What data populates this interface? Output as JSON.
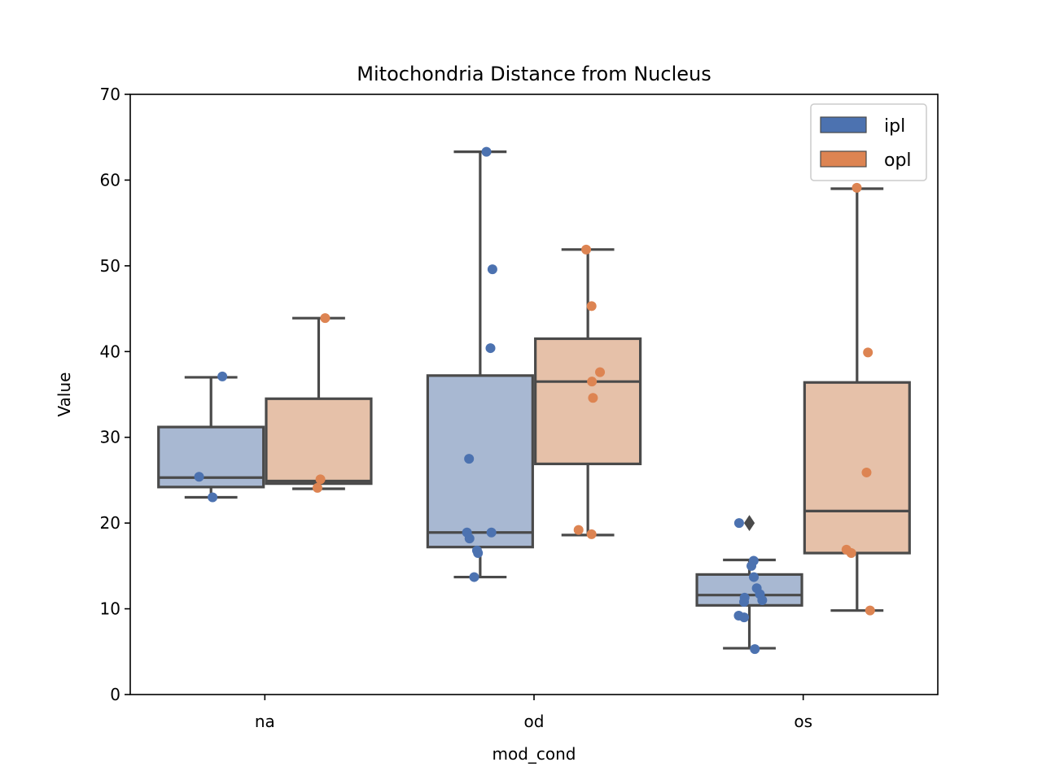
{
  "chart_data": {
    "type": "box",
    "title": "Mitochondria Distance from Nucleus",
    "xlabel": "mod_cond",
    "ylabel": "Value",
    "ylim": [
      0,
      70
    ],
    "yticks": [
      0,
      10,
      20,
      30,
      40,
      50,
      60,
      70
    ],
    "categories": [
      "na",
      "od",
      "os"
    ],
    "grid": false,
    "legend_position": "top-right",
    "series": [
      {
        "name": "ipl",
        "color": "#4c72b0",
        "box_fill": "#a8b8d2",
        "boxes": [
          {
            "category": "na",
            "q1": 24.2,
            "median": 25.3,
            "q3": 31.2,
            "whisker_low": 23.0,
            "whisker_high": 37.0,
            "outliers": []
          },
          {
            "category": "od",
            "q1": 17.2,
            "median": 18.9,
            "q3": 37.2,
            "whisker_low": 13.7,
            "whisker_high": 63.3,
            "outliers": []
          },
          {
            "category": "os",
            "q1": 10.4,
            "median": 11.6,
            "q3": 14.0,
            "whisker_low": 5.4,
            "whisker_high": 15.7,
            "outliers": [
              20.0
            ]
          }
        ],
        "points": [
          {
            "category": "na",
            "jitter": 0.0,
            "value": 37.1
          },
          {
            "category": "na",
            "jitter": 0.0,
            "value": 25.4
          },
          {
            "category": "na",
            "jitter": 0.0,
            "value": 23.0
          },
          {
            "category": "od",
            "jitter": 0.0,
            "value": 63.3
          },
          {
            "category": "od",
            "jitter": 0.0,
            "value": 49.6
          },
          {
            "category": "od",
            "jitter": 0.0,
            "value": 40.4
          },
          {
            "category": "od",
            "jitter": 0.0,
            "value": 27.5
          },
          {
            "category": "od",
            "jitter": 0.0,
            "value": 18.9
          },
          {
            "category": "od",
            "jitter": 0.0,
            "value": 18.9
          },
          {
            "category": "od",
            "jitter": 0.0,
            "value": 18.2
          },
          {
            "category": "od",
            "jitter": 0.0,
            "value": 16.8
          },
          {
            "category": "od",
            "jitter": 0.0,
            "value": 16.5
          },
          {
            "category": "od",
            "jitter": 0.0,
            "value": 13.7
          },
          {
            "category": "os",
            "jitter": 0.0,
            "value": 20.0
          },
          {
            "category": "os",
            "jitter": 0.0,
            "value": 15.6
          },
          {
            "category": "os",
            "jitter": 0.0,
            "value": 15.0
          },
          {
            "category": "os",
            "jitter": 0.0,
            "value": 13.7
          },
          {
            "category": "os",
            "jitter": 0.0,
            "value": 12.4
          },
          {
            "category": "os",
            "jitter": 0.0,
            "value": 11.7
          },
          {
            "category": "os",
            "jitter": 0.0,
            "value": 11.3
          },
          {
            "category": "os",
            "jitter": 0.0,
            "value": 11.0
          },
          {
            "category": "os",
            "jitter": 0.0,
            "value": 10.8
          },
          {
            "category": "os",
            "jitter": 0.0,
            "value": 9.2
          },
          {
            "category": "os",
            "jitter": 0.0,
            "value": 9.0
          },
          {
            "category": "os",
            "jitter": 0.0,
            "value": 5.3
          }
        ]
      },
      {
        "name": "opl",
        "color": "#dd8452",
        "box_fill": "#e6c1a9",
        "boxes": [
          {
            "category": "na",
            "q1": 24.6,
            "median": 24.9,
            "q3": 34.5,
            "whisker_low": 24.0,
            "whisker_high": 43.9,
            "outliers": []
          },
          {
            "category": "od",
            "q1": 26.9,
            "median": 36.5,
            "q3": 41.5,
            "whisker_low": 18.6,
            "whisker_high": 51.9,
            "outliers": []
          },
          {
            "category": "os",
            "q1": 16.5,
            "median": 21.4,
            "q3": 36.4,
            "whisker_low": 9.8,
            "whisker_high": 59.0,
            "outliers": []
          }
        ],
        "points": [
          {
            "category": "na",
            "jitter": 0.0,
            "value": 43.9
          },
          {
            "category": "na",
            "jitter": 0.0,
            "value": 25.1
          },
          {
            "category": "na",
            "jitter": 0.0,
            "value": 24.1
          },
          {
            "category": "od",
            "jitter": 0.0,
            "value": 51.9
          },
          {
            "category": "od",
            "jitter": 0.0,
            "value": 45.3
          },
          {
            "category": "od",
            "jitter": 0.0,
            "value": 37.6
          },
          {
            "category": "od",
            "jitter": 0.0,
            "value": 36.5
          },
          {
            "category": "od",
            "jitter": 0.0,
            "value": 34.6
          },
          {
            "category": "od",
            "jitter": 0.0,
            "value": 19.2
          },
          {
            "category": "od",
            "jitter": 0.0,
            "value": 18.7
          },
          {
            "category": "os",
            "jitter": 0.0,
            "value": 59.1
          },
          {
            "category": "os",
            "jitter": 0.0,
            "value": 39.9
          },
          {
            "category": "os",
            "jitter": 0.0,
            "value": 25.9
          },
          {
            "category": "os",
            "jitter": 0.0,
            "value": 16.9
          },
          {
            "category": "os",
            "jitter": 0.0,
            "value": 16.5
          },
          {
            "category": "os",
            "jitter": 0.0,
            "value": 9.8
          }
        ]
      }
    ]
  }
}
